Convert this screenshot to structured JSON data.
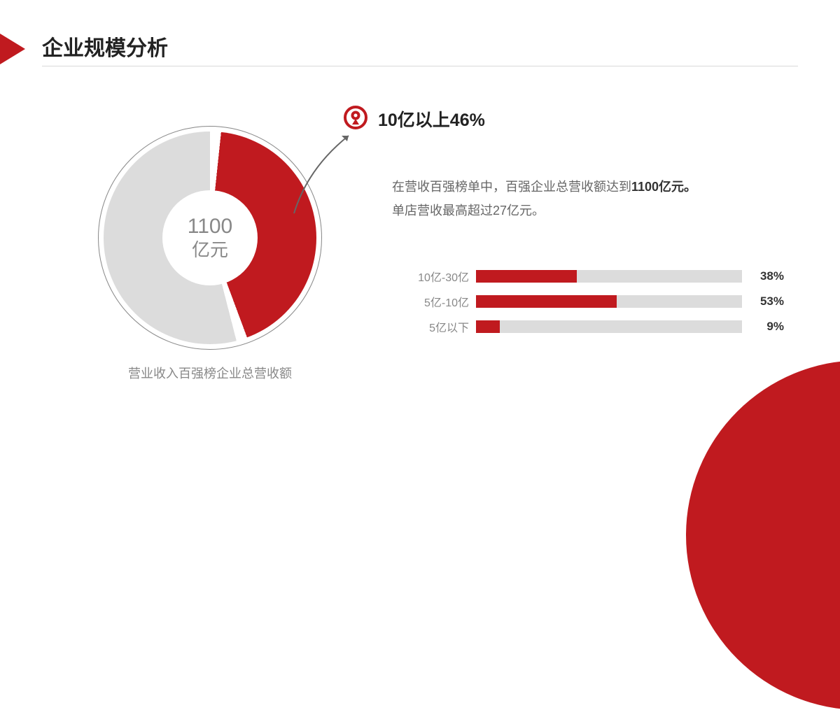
{
  "title": "企业规模分析",
  "accent_color": "#c01a1f",
  "muted_color": "#888888",
  "grey_fill": "#dcdcdc",
  "donut": {
    "center_value": "1100",
    "center_unit": "亿元",
    "highlight_percent": 46,
    "highlight_start_deg": 0,
    "full_circle_bg": "#dcdcdc",
    "highlight_color": "#c01a1f",
    "inner_gap_deg": 6,
    "caption": "营业收入百强榜企业总营收额"
  },
  "callout": {
    "text": "10亿以上46%",
    "icon_name": "map-pin-icon"
  },
  "description_line1": "在营收百强榜单中，百强企业总营收额达到",
  "description_bold": "1100亿元。",
  "description_line2": "单店营收最高超过27亿元。",
  "bars": {
    "track_bg": "#dcdcdc",
    "fill_color": "#c01a1f",
    "max_scale_percent": 100,
    "rows": [
      {
        "label": "10亿-30亿",
        "value": 38,
        "display": "38%"
      },
      {
        "label": "5亿-10亿",
        "value": 53,
        "display": "53%"
      },
      {
        "label": "5亿以下",
        "value": 9,
        "display": "9%"
      }
    ]
  }
}
